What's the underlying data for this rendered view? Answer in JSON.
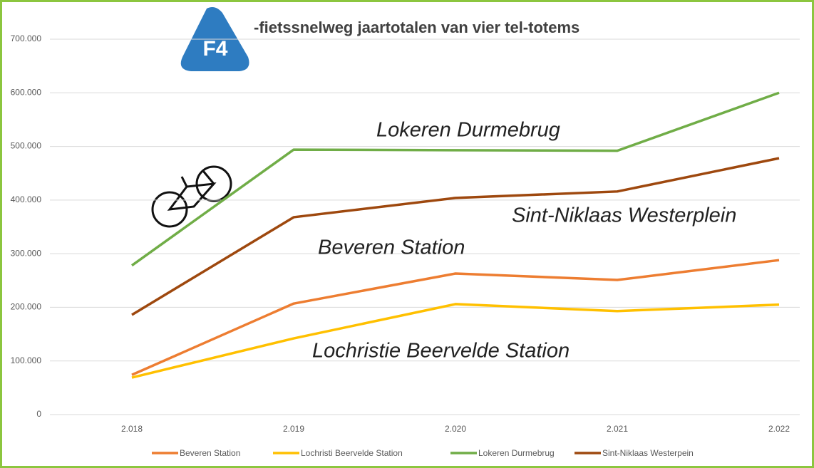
{
  "chart_data": {
    "type": "line",
    "title": "-fietssnelweg jaartotalen van vier tel-totems",
    "logo_text": "F4",
    "categories": [
      "2.018",
      "2.019",
      "2.020",
      "2.021",
      "2.022"
    ],
    "series": [
      {
        "name": "Beveren Station",
        "color": "#ed7d31",
        "values": [
          74000,
          207000,
          263000,
          251000,
          288000
        ]
      },
      {
        "name": "Lochristi Beervelde Station",
        "color": "#ffc000",
        "values": [
          69000,
          142000,
          206000,
          193000,
          205000
        ]
      },
      {
        "name": "Lokeren Durmebrug",
        "color": "#70ad47",
        "values": [
          278000,
          494000,
          493000,
          492000,
          600000
        ]
      },
      {
        "name": "Sint-Niklaas Westerpein",
        "color": "#9e480e",
        "values": [
          186000,
          368000,
          404000,
          416000,
          478000
        ]
      }
    ],
    "annotations": [
      "Lokeren  Durmebrug",
      "Sint-Niklaas Westerplein",
      "Beveren Station",
      "Lochristie  Beervelde Station"
    ],
    "ylim": [
      0,
      700000
    ],
    "yticks": [
      0,
      {
        "value": 100000,
        "label": "100.000"
      },
      {
        "value": 200000,
        "label": "200.000"
      },
      {
        "value": 300000,
        "label": "300.000"
      },
      {
        "value": 400000,
        "label": "400.000"
      },
      {
        "value": 500000,
        "label": "500.000"
      },
      {
        "value": 600000,
        "label": "600.000"
      },
      {
        "value": 700000,
        "label": "700.000"
      }
    ],
    "grid": true,
    "legend": "bottom"
  }
}
